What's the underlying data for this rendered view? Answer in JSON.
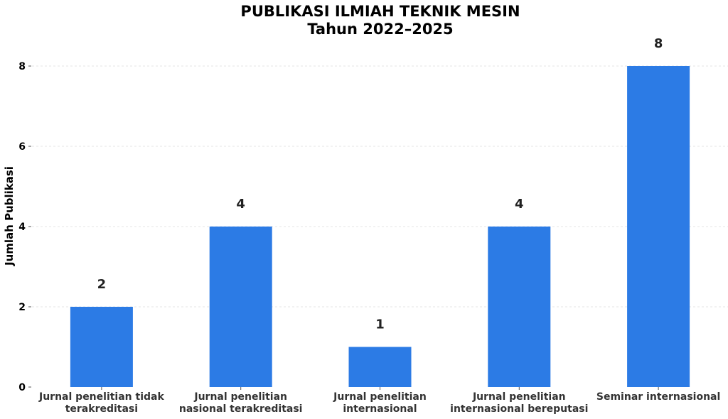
{
  "chart_data": {
    "type": "bar",
    "title": "PUBLIKASI ILMIAH TEKNIK MESIN",
    "subtitle": "Tahun 2022–2025",
    "xlabel": "",
    "ylabel": "Jumlah Publikasi",
    "categories": [
      [
        "Jurnal penelitian tidak",
        "terakreditasi"
      ],
      [
        "Jurnal penelitian",
        "nasional terakreditasi"
      ],
      [
        "Jurnal penelitian",
        "internasional"
      ],
      [
        "Jurnal penelitian",
        "internasional bereputasi"
      ],
      [
        "Seminar internasional"
      ]
    ],
    "values": [
      2,
      4,
      1,
      4,
      8
    ],
    "data_labels": [
      "2",
      "4",
      "1",
      "4",
      "8"
    ],
    "yticks": [
      0,
      2,
      4,
      6,
      8
    ],
    "ylim": [
      0,
      8.8
    ],
    "grid": "horizontal dashed",
    "bar_color": "#2c7be5"
  }
}
